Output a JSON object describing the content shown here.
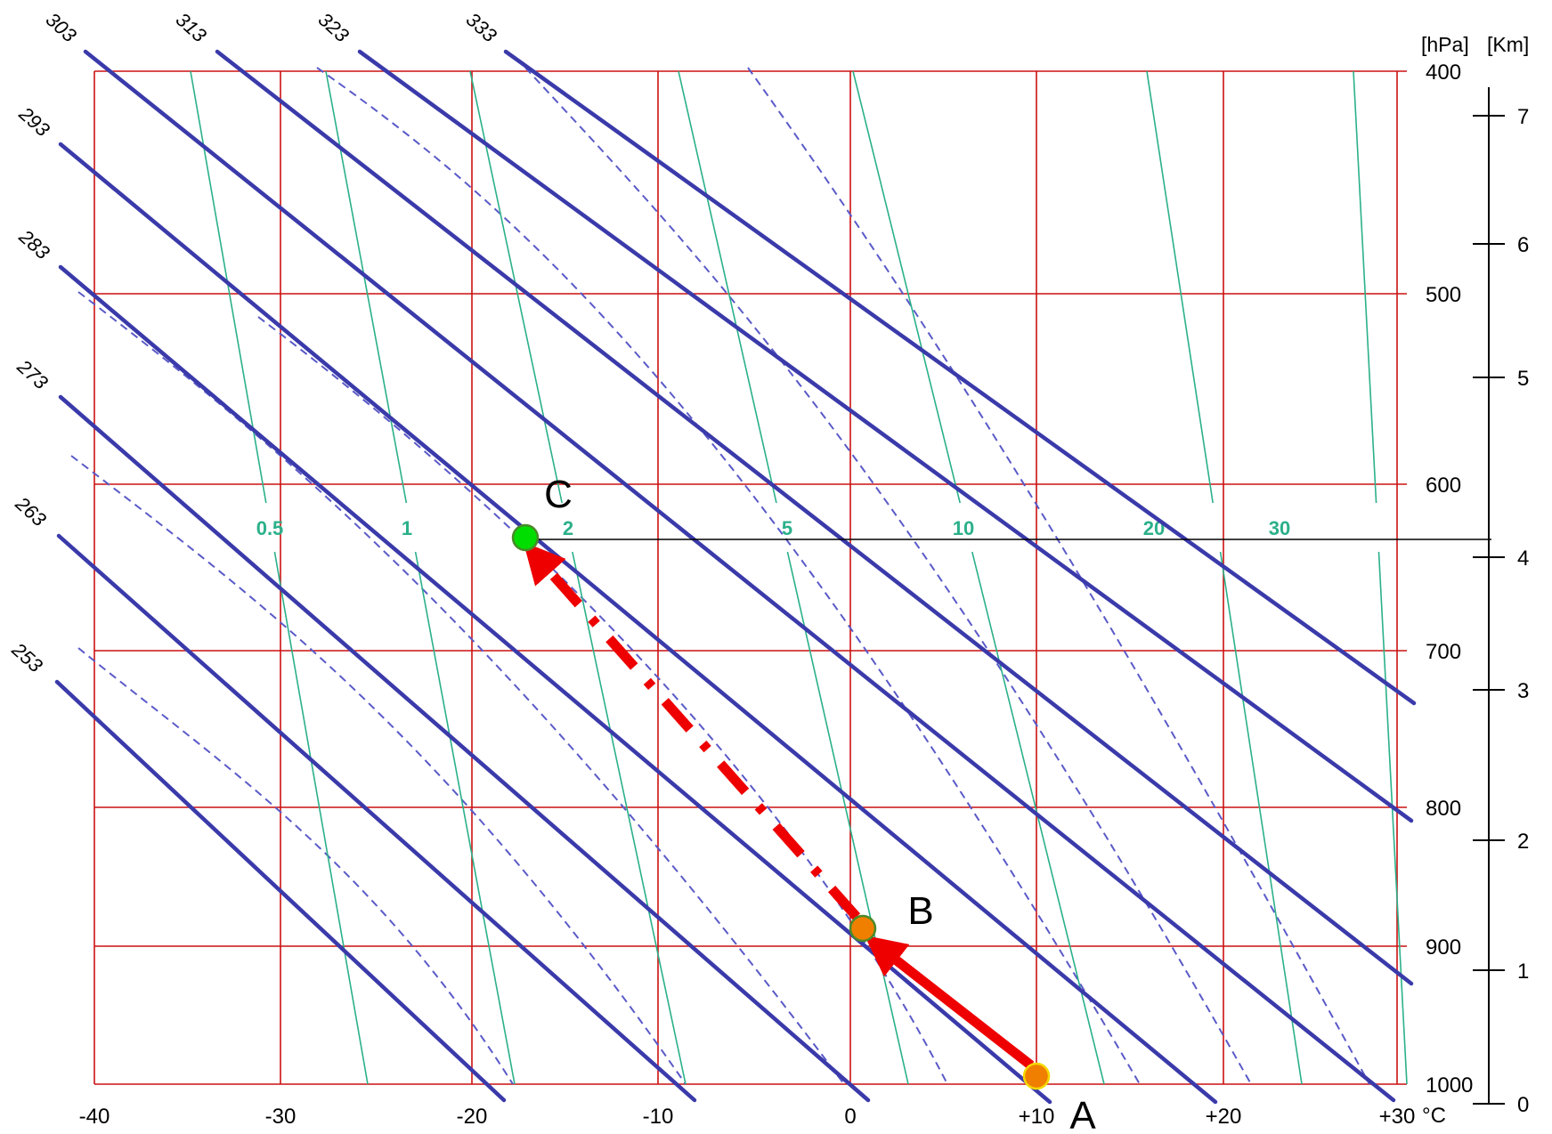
{
  "axis_units": {
    "hpa": "[hPa]",
    "km": "[Km]",
    "temperature": "°C"
  },
  "temperature_ticks": [
    {
      "value": -40,
      "label": "-40"
    },
    {
      "value": -30,
      "label": "-30"
    },
    {
      "value": -20,
      "label": "-20"
    },
    {
      "value": -10,
      "label": "-10"
    },
    {
      "value": 0,
      "label": "0"
    },
    {
      "value": 10,
      "label": "+10"
    },
    {
      "value": 20,
      "label": "+20"
    },
    {
      "value": 30,
      "label": "+30"
    }
  ],
  "pressure_ticks": [
    {
      "value": 400,
      "label": "400"
    },
    {
      "value": 500,
      "label": "500"
    },
    {
      "value": 600,
      "label": "600"
    },
    {
      "value": 700,
      "label": "700"
    },
    {
      "value": 800,
      "label": "800"
    },
    {
      "value": 900,
      "label": "900"
    },
    {
      "value": 1000,
      "label": "1000"
    }
  ],
  "height_ticks": [
    {
      "value": 0,
      "label": "0"
    },
    {
      "value": 1,
      "label": "1"
    },
    {
      "value": 2,
      "label": "2"
    },
    {
      "value": 3,
      "label": "3"
    },
    {
      "value": 4,
      "label": "4"
    },
    {
      "value": 5,
      "label": "5"
    },
    {
      "value": 6,
      "label": "6"
    },
    {
      "value": 7,
      "label": "7"
    }
  ],
  "dry_adiabat_labels": [
    "253",
    "263",
    "273",
    "283",
    "293",
    "303",
    "313",
    "323",
    "333"
  ],
  "mixing_ratio_labels": [
    "0.5",
    "1",
    "2",
    "5",
    "10",
    "20",
    "30"
  ],
  "points": [
    {
      "label": "A",
      "pressure_hpa": 1000,
      "temperature_c": 10,
      "color": "#f07f00"
    },
    {
      "label": "B",
      "pressure_hpa": 900,
      "temperature_c": 1,
      "color": "#f07f00"
    },
    {
      "label": "C",
      "pressure_hpa": 635,
      "temperature_c": -17,
      "color": "#00dd00"
    }
  ],
  "colors": {
    "isobar_isotherm_grid": "#cc1111",
    "dry_adiabat": "#3a3aaa",
    "moist_adiabat": "#5a5ac8",
    "mixing_ratio": "#2bb08a",
    "parcel_path": "#ee0000"
  }
}
